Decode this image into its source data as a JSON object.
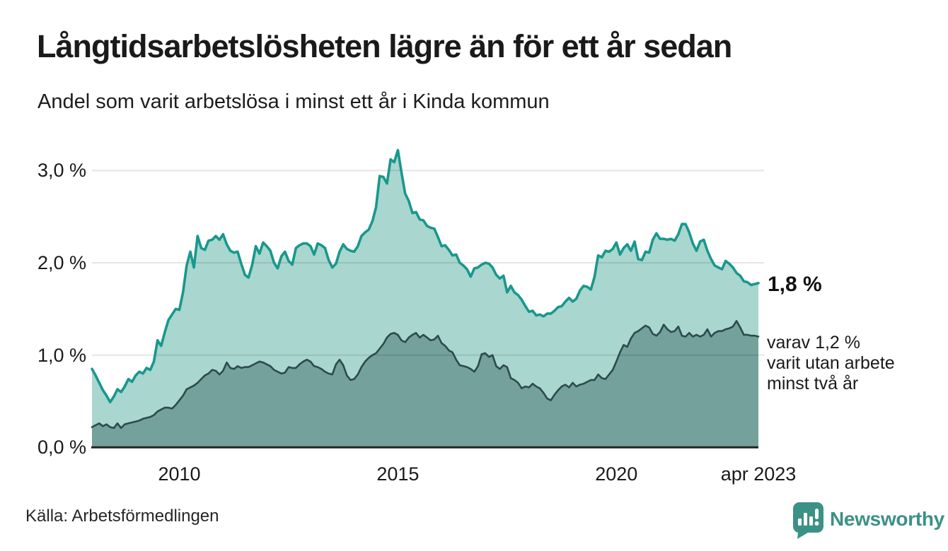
{
  "header": {
    "title": "Långtidsarbetslösheten lägre än för ett år sedan",
    "subtitle": "Andel som varit arbetslösa i minst ett år i Kinda kommun"
  },
  "annotations": {
    "end_value": "1,8 %",
    "sub": [
      "varav 1,2 %",
      "varit utan arbete",
      "minst två år"
    ]
  },
  "footer": {
    "source": "Källa: Arbetsförmedlingen",
    "brand": "Newsworthy"
  },
  "colors": {
    "total_line": "#18988c",
    "total_fill": "#a9d6cf",
    "two_year_line": "#2c4a4e",
    "two_year_fill": "#74a19b",
    "baseline": "#242424",
    "gridline": "rgba(0,0,0,0.10)",
    "brand_teal": "#3b9186"
  },
  "chart_data": {
    "type": "area",
    "title": "Långtidsarbetslösheten lägre än för ett år sedan",
    "subtitle": "Andel som varit arbetslösa i minst ett år i Kinda kommun",
    "unit": "%",
    "x_unit": "month",
    "x_start": "2008-01",
    "x_end": "2023-04",
    "ylim": [
      0,
      3.3
    ],
    "grid": "horizontal",
    "yticks": [
      {
        "value": 3,
        "label": "3,0 %",
        "gridline": true
      },
      {
        "value": 2,
        "label": "2,0 %",
        "gridline": true
      },
      {
        "value": 1,
        "label": "1,0 %",
        "gridline": true
      },
      {
        "value": 0,
        "label": "0,0 %",
        "gridline": false
      }
    ],
    "xticks": [
      {
        "month_index": 24,
        "label": "2010"
      },
      {
        "month_index": 84,
        "label": "2015"
      },
      {
        "month_index": 144,
        "label": "2020"
      },
      {
        "month_index": 183,
        "label": "apr 2023"
      }
    ],
    "series": [
      {
        "name": "Andel arbetslösa minst ett år",
        "end_label": "1,8 %",
        "color": "#18988c",
        "fill": "#a9d6cf",
        "values": [
          0.85,
          0.78,
          0.7,
          0.62,
          0.56,
          0.49,
          0.55,
          0.63,
          0.6,
          0.66,
          0.74,
          0.71,
          0.78,
          0.82,
          0.8,
          0.86,
          0.84,
          0.93,
          1.16,
          1.1,
          1.25,
          1.38,
          1.44,
          1.5,
          1.49,
          1.68,
          1.97,
          2.12,
          1.95,
          2.29,
          2.16,
          2.14,
          2.24,
          2.25,
          2.29,
          2.25,
          2.31,
          2.2,
          2.13,
          2.11,
          2.12,
          1.99,
          1.87,
          1.84,
          1.98,
          2.18,
          2.1,
          2.22,
          2.18,
          2.13,
          2.0,
          1.94,
          2.07,
          2.12,
          2.02,
          1.98,
          2.16,
          2.19,
          2.21,
          2.21,
          2.18,
          2.09,
          2.21,
          2.19,
          2.16,
          2.03,
          1.95,
          1.99,
          2.12,
          2.2,
          2.15,
          2.13,
          2.12,
          2.18,
          2.29,
          2.33,
          2.36,
          2.45,
          2.6,
          2.94,
          2.93,
          2.86,
          3.12,
          3.09,
          3.22,
          2.98,
          2.75,
          2.67,
          2.54,
          2.55,
          2.47,
          2.46,
          2.4,
          2.38,
          2.37,
          2.28,
          2.18,
          2.19,
          2.14,
          2.08,
          2.09,
          2.0,
          1.97,
          1.93,
          1.85,
          1.94,
          1.95,
          1.98,
          2.0,
          1.99,
          1.95,
          1.87,
          1.83,
          1.86,
          1.68,
          1.75,
          1.68,
          1.65,
          1.6,
          1.53,
          1.47,
          1.48,
          1.43,
          1.44,
          1.42,
          1.45,
          1.45,
          1.48,
          1.52,
          1.53,
          1.58,
          1.62,
          1.58,
          1.61,
          1.7,
          1.75,
          1.74,
          1.71,
          1.85,
          2.08,
          2.06,
          2.13,
          2.12,
          2.15,
          2.22,
          2.09,
          2.16,
          2.2,
          2.13,
          2.23,
          2.04,
          2.03,
          2.12,
          2.11,
          2.25,
          2.32,
          2.26,
          2.26,
          2.25,
          2.26,
          2.24,
          2.31,
          2.42,
          2.42,
          2.33,
          2.21,
          2.13,
          2.23,
          2.25,
          2.13,
          2.04,
          1.97,
          1.95,
          1.93,
          2.02,
          1.99,
          1.95,
          1.89,
          1.86,
          1.8,
          1.79,
          1.76,
          1.77,
          1.78
        ]
      },
      {
        "name": "varav utan arbete minst två år",
        "end_label": "varav 1,2 % varit utan arbete minst två år",
        "color": "#2c4a4e",
        "fill": "#74a19b",
        "values": [
          0.22,
          0.24,
          0.26,
          0.23,
          0.25,
          0.22,
          0.21,
          0.26,
          0.21,
          0.25,
          0.26,
          0.27,
          0.28,
          0.29,
          0.31,
          0.32,
          0.33,
          0.35,
          0.39,
          0.41,
          0.43,
          0.43,
          0.42,
          0.46,
          0.51,
          0.56,
          0.63,
          0.65,
          0.67,
          0.7,
          0.74,
          0.78,
          0.8,
          0.84,
          0.83,
          0.79,
          0.83,
          0.92,
          0.86,
          0.85,
          0.88,
          0.86,
          0.87,
          0.87,
          0.89,
          0.91,
          0.93,
          0.92,
          0.9,
          0.88,
          0.84,
          0.82,
          0.8,
          0.81,
          0.87,
          0.86,
          0.86,
          0.9,
          0.93,
          0.95,
          0.93,
          0.88,
          0.87,
          0.85,
          0.82,
          0.8,
          0.79,
          0.9,
          0.95,
          0.89,
          0.78,
          0.73,
          0.74,
          0.79,
          0.87,
          0.93,
          0.97,
          1.0,
          1.02,
          1.07,
          1.12,
          1.19,
          1.23,
          1.24,
          1.22,
          1.16,
          1.14,
          1.19,
          1.22,
          1.24,
          1.19,
          1.22,
          1.19,
          1.16,
          1.17,
          1.21,
          1.13,
          1.1,
          1.05,
          1.03,
          0.95,
          0.89,
          0.88,
          0.87,
          0.85,
          0.82,
          0.88,
          1.01,
          1.02,
          0.98,
          1.0,
          0.88,
          0.85,
          0.89,
          0.87,
          0.75,
          0.73,
          0.7,
          0.64,
          0.66,
          0.65,
          0.69,
          0.66,
          0.64,
          0.59,
          0.53,
          0.51,
          0.57,
          0.62,
          0.66,
          0.68,
          0.65,
          0.7,
          0.66,
          0.68,
          0.69,
          0.71,
          0.73,
          0.73,
          0.79,
          0.75,
          0.74,
          0.79,
          0.84,
          0.93,
          1.03,
          1.11,
          1.09,
          1.18,
          1.24,
          1.26,
          1.29,
          1.32,
          1.3,
          1.23,
          1.21,
          1.25,
          1.33,
          1.28,
          1.25,
          1.26,
          1.31,
          1.21,
          1.2,
          1.24,
          1.2,
          1.22,
          1.2,
          1.22,
          1.28,
          1.2,
          1.24,
          1.26,
          1.26,
          1.28,
          1.29,
          1.31,
          1.37,
          1.3,
          1.22,
          1.22,
          1.21,
          1.21,
          1.2
        ]
      }
    ]
  }
}
